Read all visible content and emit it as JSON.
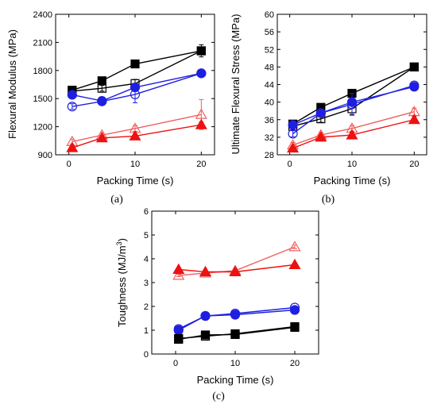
{
  "colors": {
    "black": "#000000",
    "blue": "#1f1fe0",
    "red": "#ee1111",
    "light_red": "#f06060"
  },
  "chart_data": [
    {
      "type": "line",
      "panel_label": "(a)",
      "title": "",
      "xlabel": "Packing Time (s)",
      "ylabel": "Flexural Modulus (MPa)",
      "xlim": [
        -2,
        22
      ],
      "ylim": [
        900,
        2400
      ],
      "xticks": [
        0,
        10,
        20
      ],
      "xtick_labels": [
        "0",
        "10",
        "20"
      ],
      "yticks": [
        900,
        1200,
        1500,
        1800,
        2100,
        2400
      ],
      "ytick_labels": [
        "900",
        "1200",
        "1500",
        "1800",
        "2100",
        "2400"
      ],
      "x": [
        0.5,
        5,
        10,
        20
      ],
      "series": [
        {
          "color": "black",
          "marker": "square",
          "filled": true,
          "values": [
            1590,
            1690,
            1870,
            2010
          ],
          "err": [
            25,
            20,
            25,
            40
          ]
        },
        {
          "color": "black",
          "marker": "square",
          "filled": false,
          "values": [
            1580,
            1610,
            1660,
            2010
          ],
          "err": [
            25,
            30,
            45,
            65
          ]
        },
        {
          "color": "blue",
          "marker": "circle",
          "filled": true,
          "values": [
            1540,
            1475,
            1620,
            1770
          ],
          "err": [
            20,
            20,
            25,
            20
          ]
        },
        {
          "color": "blue",
          "marker": "circle",
          "filled": false,
          "values": [
            1415,
            1470,
            1545,
            1770
          ],
          "err": [
            30,
            25,
            90,
            25
          ]
        },
        {
          "color": "light_red",
          "marker": "triangle",
          "filled": false,
          "values": [
            1040,
            1110,
            1180,
            1330
          ],
          "err": [
            25,
            25,
            30,
            160
          ]
        },
        {
          "color": "red",
          "marker": "triangle",
          "filled": true,
          "values": [
            975,
            1080,
            1100,
            1220
          ],
          "err": [
            20,
            20,
            20,
            30
          ]
        }
      ]
    },
    {
      "type": "line",
      "panel_label": "(b)",
      "title": "",
      "xlabel": "Packing Time (s)",
      "ylabel": "Ultimate Flexural Stress (MPa)",
      "xlim": [
        -2,
        22
      ],
      "ylim": [
        28,
        60
      ],
      "xticks": [
        0,
        10,
        20
      ],
      "xtick_labels": [
        "0",
        "10",
        "20"
      ],
      "yticks": [
        28,
        32,
        36,
        40,
        44,
        48,
        52,
        56,
        60
      ],
      "ytick_labels": [
        "28",
        "32",
        "36",
        "40",
        "44",
        "48",
        "52",
        "56",
        "60"
      ],
      "x": [
        0.5,
        5,
        10,
        20
      ],
      "series": [
        {
          "color": "black",
          "marker": "square",
          "filled": true,
          "values": [
            35,
            38.8,
            42,
            48
          ],
          "err": [
            0.8,
            0.8,
            0.7,
            0.6
          ]
        },
        {
          "color": "black",
          "marker": "square",
          "filled": false,
          "values": [
            34.5,
            36.2,
            38.5,
            48
          ],
          "err": [
            1.0,
            0.8,
            1.3,
            0.8
          ]
        },
        {
          "color": "blue",
          "marker": "circle",
          "filled": true,
          "values": [
            34.8,
            37.5,
            40,
            43.5
          ],
          "err": [
            0.7,
            0.8,
            0.8,
            0.6
          ]
        },
        {
          "color": "blue",
          "marker": "circle",
          "filled": false,
          "values": [
            32.8,
            37.5,
            39.5,
            43.8
          ],
          "err": [
            0.7,
            0.8,
            2.5,
            0.6
          ]
        },
        {
          "color": "light_red",
          "marker": "triangle",
          "filled": false,
          "values": [
            30.2,
            32.5,
            34,
            37.8
          ],
          "err": [
            0.6,
            0.6,
            0.6,
            0.8
          ]
        },
        {
          "color": "red",
          "marker": "triangle",
          "filled": true,
          "values": [
            29.5,
            32,
            32.5,
            36
          ],
          "err": [
            0.5,
            0.6,
            0.7,
            0.8
          ]
        }
      ]
    },
    {
      "type": "line",
      "panel_label": "(c)",
      "title": "",
      "xlabel": "Packing Time (s)",
      "ylabel": "Toughness (MJ/m",
      "ylabel_sup": "3",
      "ylabel_end": ")",
      "xlim": [
        -4,
        24
      ],
      "ylim": [
        0,
        6
      ],
      "xticks": [
        0,
        10,
        20
      ],
      "xtick_labels": [
        "0",
        "10",
        "20"
      ],
      "yticks": [
        0,
        1,
        2,
        3,
        4,
        5,
        6
      ],
      "ytick_labels": [
        "0",
        "1",
        "2",
        "3",
        "4",
        "5",
        "6"
      ],
      "x": [
        0.5,
        5,
        10,
        20
      ],
      "series": [
        {
          "color": "light_red",
          "marker": "triangle",
          "filled": false,
          "values": [
            3.3,
            3.4,
            3.5,
            4.5
          ],
          "err": [
            0.05,
            0.05,
            0.05,
            0.08
          ]
        },
        {
          "color": "red",
          "marker": "triangle",
          "filled": true,
          "values": [
            3.55,
            3.45,
            3.45,
            3.75
          ],
          "err": [
            0.05,
            0.05,
            0.05,
            0.05
          ]
        },
        {
          "color": "blue",
          "marker": "circle",
          "filled": false,
          "values": [
            1.05,
            1.6,
            1.7,
            1.95
          ],
          "err": [
            0.05,
            0.05,
            0.05,
            0.05
          ]
        },
        {
          "color": "blue",
          "marker": "circle",
          "filled": true,
          "values": [
            1.0,
            1.6,
            1.65,
            1.85
          ],
          "err": [
            0.05,
            0.05,
            0.05,
            0.05
          ]
        },
        {
          "color": "black",
          "marker": "square",
          "filled": false,
          "values": [
            0.65,
            0.75,
            0.85,
            1.15
          ],
          "err": [
            0.1,
            0.1,
            0.08,
            0.1
          ]
        },
        {
          "color": "black",
          "marker": "square",
          "filled": true,
          "values": [
            0.62,
            0.8,
            0.82,
            1.12
          ],
          "err": [
            0.08,
            0.08,
            0.08,
            0.08
          ]
        }
      ]
    }
  ]
}
